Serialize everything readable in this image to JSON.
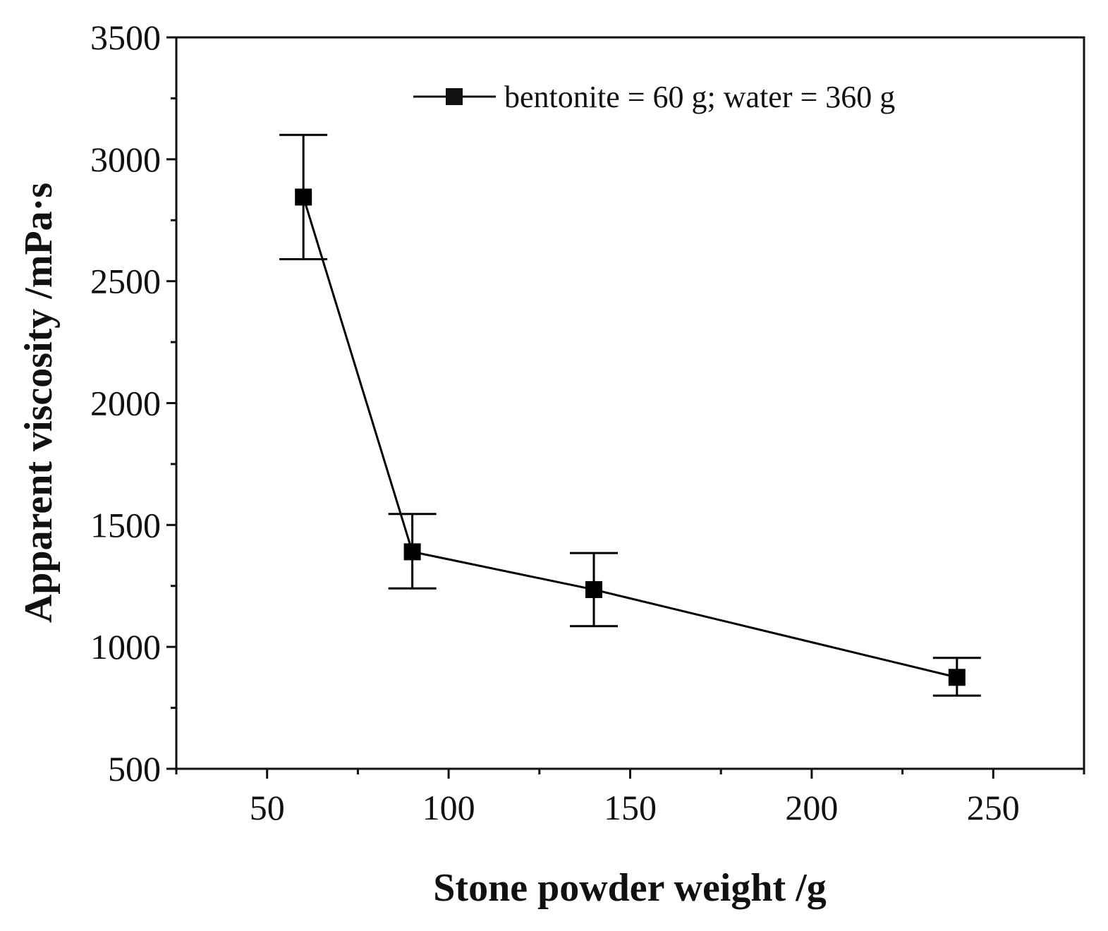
{
  "chart_data": {
    "type": "line",
    "title": "",
    "xlabel": "Stone powder weight /g",
    "ylabel": "Apparent viscosity /mPa·s",
    "xlim": [
      25,
      275
    ],
    "ylim": [
      500,
      3500
    ],
    "xticks": [
      50,
      100,
      150,
      200,
      250
    ],
    "xtick_labels": [
      "50",
      "100",
      "150",
      "200",
      "250"
    ],
    "yticks": [
      500,
      1000,
      1500,
      2000,
      2500,
      3000,
      3500
    ],
    "ytick_labels": [
      "500",
      "1000",
      "1500",
      "2000",
      "2500",
      "3000",
      "3500"
    ],
    "grid": false,
    "legend_position": "top-right",
    "series": [
      {
        "name": "bentonite = 60 g; water = 360 g",
        "marker": "square",
        "color": "#000000",
        "x": [
          60,
          90,
          140,
          240
        ],
        "y": [
          2845,
          1390,
          1235,
          875
        ],
        "error_low": [
          2590,
          1240,
          1085,
          800
        ],
        "error_high": [
          3100,
          1545,
          1385,
          955
        ]
      }
    ]
  }
}
